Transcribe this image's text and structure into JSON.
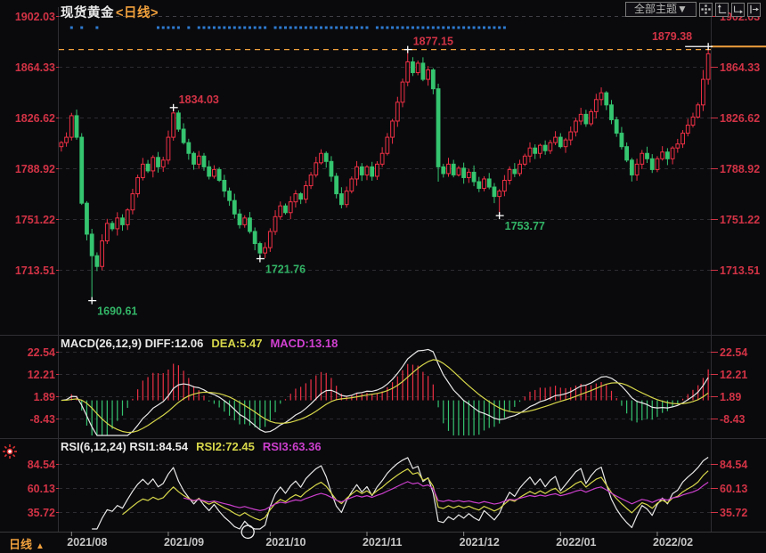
{
  "header": {
    "symbol": "现货黄金",
    "period_tag": "<日线>"
  },
  "toolbar": {
    "theme_button": "全部主题▼",
    "icons": [
      "move-tool-icon",
      "y-axis-scale-icon",
      "x-axis-scale-icon",
      "shift-right-icon"
    ]
  },
  "macd_panel": {
    "label_segments": [
      {
        "text": "MACD(26,12,9) DIFF:12.06",
        "color": "#e8e8e8"
      },
      {
        "text": "DEA:5.47",
        "color": "#d6d64a"
      },
      {
        "text": "MACD:13.18",
        "color": "#d040d0"
      }
    ]
  },
  "rsi_panel": {
    "label_segments": [
      {
        "text": "RSI(6,12,24) RSI1:84.54",
        "color": "#e8e8e8"
      },
      {
        "text": "RSI2:72.45",
        "color": "#d6d64a"
      },
      {
        "text": "RSI3:63.36",
        "color": "#cc3fcc"
      }
    ]
  },
  "x_axis": {
    "period_label": "日线",
    "period_arrow": "▲",
    "months": [
      {
        "label": "2021/08",
        "index": 2
      },
      {
        "label": "2021/09",
        "index": 21
      },
      {
        "label": "2021/10",
        "index": 41
      },
      {
        "label": "2021/11",
        "index": 60
      },
      {
        "label": "2021/12",
        "index": 79
      },
      {
        "label": "2022/01",
        "index": 98
      },
      {
        "label": "2022/02",
        "index": 117
      }
    ]
  },
  "colors": {
    "up": "#ee3044",
    "down": "#35c46f",
    "axis_red": "#d23345",
    "low_label_green": "#33b566",
    "orange": "#f0a03c",
    "dot_blue": "#2e7bd0",
    "white_line": "#e8e8e8",
    "yellow_line": "#d6d64a",
    "magenta_line": "#cc3fcc",
    "date_text": "#c4c4c4",
    "grid": "#2c2c31",
    "grid_top": "#3f3f45",
    "divider": "#2e2e33",
    "axis_line": "#3a3a3a"
  },
  "chart_data": {
    "type": "candlestick",
    "title": "现货黄金 日线 (Spot Gold, Daily)",
    "y_axis_values": [
      1902.03,
      1864.33,
      1826.62,
      1788.92,
      1751.22,
      1713.51
    ],
    "macd_axis_values": [
      22.54,
      12.21,
      1.89,
      -8.43
    ],
    "rsi_axis_values": [
      84.54,
      60.13,
      35.72
    ],
    "macd_params": {
      "slow": 26,
      "fast": 12,
      "signal": 9,
      "diff": 12.06,
      "dea": 5.47,
      "macd": 13.18
    },
    "rsi_params": {
      "periods": [
        6,
        12,
        24
      ],
      "rsi1": 84.54,
      "rsi2": 72.45,
      "rsi3": 63.36
    },
    "first_open": 1805,
    "closes": [
      1808,
      1812,
      1828,
      1812,
      1763,
      1740,
      1724,
      1716,
      1735,
      1748,
      1744,
      1752,
      1747,
      1758,
      1770,
      1782,
      1792,
      1787,
      1797,
      1790,
      1795,
      1812,
      1830,
      1818,
      1808,
      1800,
      1792,
      1798,
      1790,
      1783,
      1788,
      1780,
      1772,
      1765,
      1755,
      1747,
      1752,
      1742,
      1733,
      1726,
      1730,
      1742,
      1753,
      1761,
      1756,
      1764,
      1770,
      1766,
      1776,
      1784,
      1793,
      1800,
      1794,
      1783,
      1770,
      1762,
      1772,
      1781,
      1790,
      1784,
      1790,
      1783,
      1792,
      1800,
      1812,
      1824,
      1838,
      1853,
      1868,
      1860,
      1867,
      1855,
      1862,
      1848,
      1790,
      1785,
      1792,
      1784,
      1789,
      1782,
      1786,
      1779,
      1774,
      1781,
      1775,
      1768,
      1772,
      1780,
      1788,
      1785,
      1792,
      1798,
      1804,
      1800,
      1806,
      1802,
      1808,
      1812,
      1805,
      1810,
      1816,
      1824,
      1829,
      1822,
      1831,
      1840,
      1845,
      1836,
      1825,
      1815,
      1805,
      1795,
      1784,
      1792,
      1800,
      1796,
      1788,
      1796,
      1801,
      1796,
      1804,
      1807,
      1815,
      1821,
      1827,
      1836,
      1855,
      1874
    ],
    "wick_overrides": {
      "6": {
        "low": 1690.61
      },
      "22": {
        "high": 1834.03
      },
      "39": {
        "low": 1721.76
      },
      "68": {
        "high": 1877.15
      },
      "74": {
        "low": 1779
      },
      "86": {
        "low": 1753.77
      },
      "106": {
        "high": 1849
      },
      "126": {
        "high": 1862
      },
      "127": {
        "high": 1879.38
      }
    },
    "markers": [
      {
        "index": 6,
        "type": "low",
        "price": 1690.61,
        "label": "1690.61"
      },
      {
        "index": 22,
        "type": "high",
        "price": 1834.03,
        "label": "1834.03"
      },
      {
        "index": 39,
        "type": "low",
        "price": 1721.76,
        "label": "1721.76"
      },
      {
        "index": 68,
        "type": "high",
        "price": 1877.15,
        "label": "1877.15"
      },
      {
        "index": 86,
        "type": "low",
        "price": 1753.77,
        "label": "1753.77"
      },
      {
        "index": 127,
        "type": "high",
        "price": 1879.38,
        "label": "1879.38",
        "label_side": "left"
      }
    ],
    "hlines": [
      {
        "price": 1877.15,
        "style": "dashed"
      },
      {
        "price": 1879.38,
        "style": "solid-right-margin"
      }
    ],
    "dot_ranges": [
      [
        2,
        2
      ],
      [
        4,
        4
      ],
      [
        7,
        7
      ],
      [
        19,
        23
      ],
      [
        25,
        25
      ],
      [
        27,
        40
      ],
      [
        42,
        60
      ],
      [
        62,
        87
      ]
    ]
  }
}
